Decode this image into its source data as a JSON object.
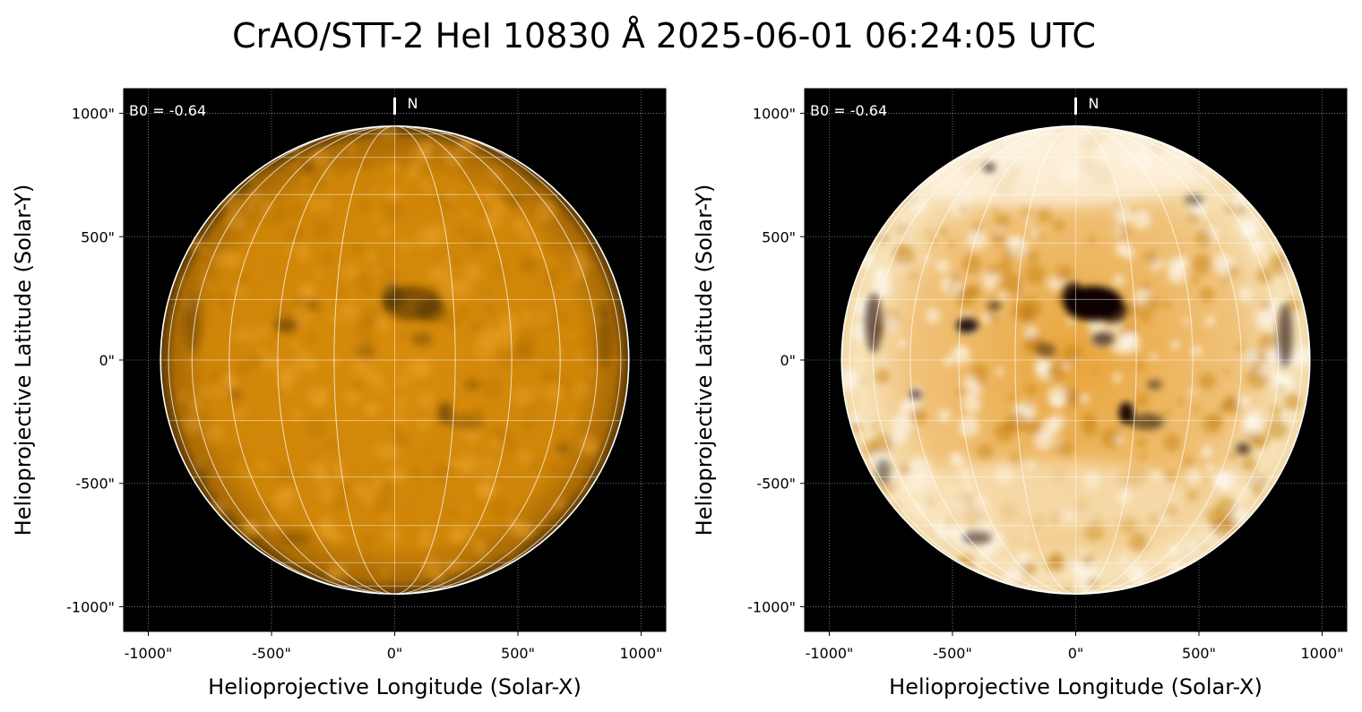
{
  "title": "CrAO/STT-2 HeI 10830 Å 2025-06-01 06:24:05 UTC",
  "panels": [
    {
      "id": "left",
      "processing": "original",
      "b0_text": "B0 = -0.64",
      "north_label": "N",
      "xlabel": "Helioprojective Longitude (Solar-X)",
      "ylabel": "Helioprojective Latitude (Solar-Y)",
      "xticks": [
        "-1000\"",
        "-500\"",
        "0\"",
        "500\"",
        "1000\""
      ],
      "yticks": [
        "1000\"",
        "500\"",
        "0\"",
        "-500\"",
        "-1000\""
      ]
    },
    {
      "id": "right",
      "processing": "contrast-enhanced",
      "b0_text": "B0 = -0.64",
      "north_label": "N",
      "xlabel": "Helioprojective Longitude (Solar-X)",
      "ylabel": "Helioprojective Latitude (Solar-Y)",
      "xticks": [
        "-1000\"",
        "-500\"",
        "0\"",
        "500\"",
        "1000\""
      ],
      "yticks": [
        "1000\"",
        "500\"",
        "0\"",
        "-500\"",
        "-1000\""
      ]
    }
  ],
  "axis": {
    "tick_values": [
      -1000,
      -500,
      0,
      500,
      1000
    ],
    "range": [
      -1100,
      1100
    ],
    "solar_radius": 950
  },
  "colors": {
    "background": "#000000",
    "disk": "#d98f08",
    "disk_bright": "#f6dca8",
    "limb": "#ffffff",
    "grid": "#ffffff"
  }
}
